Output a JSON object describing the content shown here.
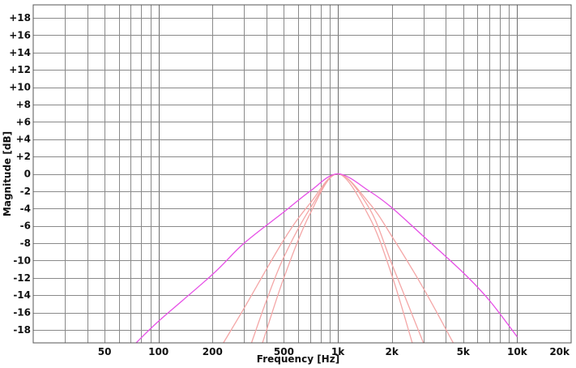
{
  "chart_data": {
    "type": "line",
    "xlabel": "Frequency [Hz]",
    "ylabel": "Magnitude [dB]",
    "x_scale": "log",
    "xlim": [
      20,
      20000
    ],
    "ylim": [
      -19.5,
      19.5
    ],
    "grid": true,
    "x_ticks": [
      {
        "value": 50,
        "label": "50"
      },
      {
        "value": 100,
        "label": "100"
      },
      {
        "value": 200,
        "label": "200"
      },
      {
        "value": 500,
        "label": "500"
      },
      {
        "value": 1000,
        "label": "1k"
      },
      {
        "value": 2000,
        "label": "2k"
      },
      {
        "value": 5000,
        "label": "5k"
      },
      {
        "value": 10000,
        "label": "10k"
      },
      {
        "value": 20000,
        "label": "20k"
      }
    ],
    "y_ticks": [
      {
        "value": 18,
        "label": "+18"
      },
      {
        "value": 16,
        "label": "+16"
      },
      {
        "value": 14,
        "label": "+14"
      },
      {
        "value": 12,
        "label": "+12"
      },
      {
        "value": 10,
        "label": "+10"
      },
      {
        "value": 8,
        "label": "+8"
      },
      {
        "value": 6,
        "label": "+6"
      },
      {
        "value": 4,
        "label": "+4"
      },
      {
        "value": 2,
        "label": "+2"
      },
      {
        "value": 0,
        "label": "0"
      },
      {
        "value": -2,
        "label": "-2"
      },
      {
        "value": -4,
        "label": "-4"
      },
      {
        "value": -6,
        "label": "-6"
      },
      {
        "value": -8,
        "label": "-8"
      },
      {
        "value": -10,
        "label": "-10"
      },
      {
        "value": -12,
        "label": "-12"
      },
      {
        "value": -14,
        "label": "-14"
      },
      {
        "value": -16,
        "label": "-16"
      },
      {
        "value": -18,
        "label": "-18"
      }
    ],
    "series": [
      {
        "color": "#e64ee6",
        "x": [
          75,
          100,
          200,
          300,
          500,
          700,
          1000,
          1500,
          2000,
          3000,
          5000,
          7000,
          10000
        ],
        "y": [
          -19.5,
          -17.0,
          -11.6,
          -8.0,
          -4.4,
          -2.0,
          0,
          -2.0,
          -3.9,
          -7.2,
          -11.4,
          -14.6,
          -18.8
        ]
      },
      {
        "color": "#f4a6a6",
        "x": [
          230,
          300,
          500,
          700,
          1000,
          1500,
          2000,
          3000,
          4400
        ],
        "y": [
          -19.5,
          -15.5,
          -7.6,
          -3.4,
          0,
          -3.4,
          -7.2,
          -13.2,
          -19.5
        ]
      },
      {
        "color": "#f4a6a6",
        "x": [
          330,
          400,
          500,
          700,
          1000,
          1500,
          2000,
          2500,
          3000
        ],
        "y": [
          -19.5,
          -14.6,
          -9.6,
          -4.0,
          0,
          -4.0,
          -10.4,
          -15.4,
          -19.5
        ]
      },
      {
        "color": "#f4a6a6",
        "x": [
          380,
          500,
          700,
          1000,
          1500,
          2000,
          2600
        ],
        "y": [
          -19.5,
          -12.0,
          -4.6,
          0,
          -5.0,
          -11.7,
          -19.5
        ]
      }
    ]
  }
}
